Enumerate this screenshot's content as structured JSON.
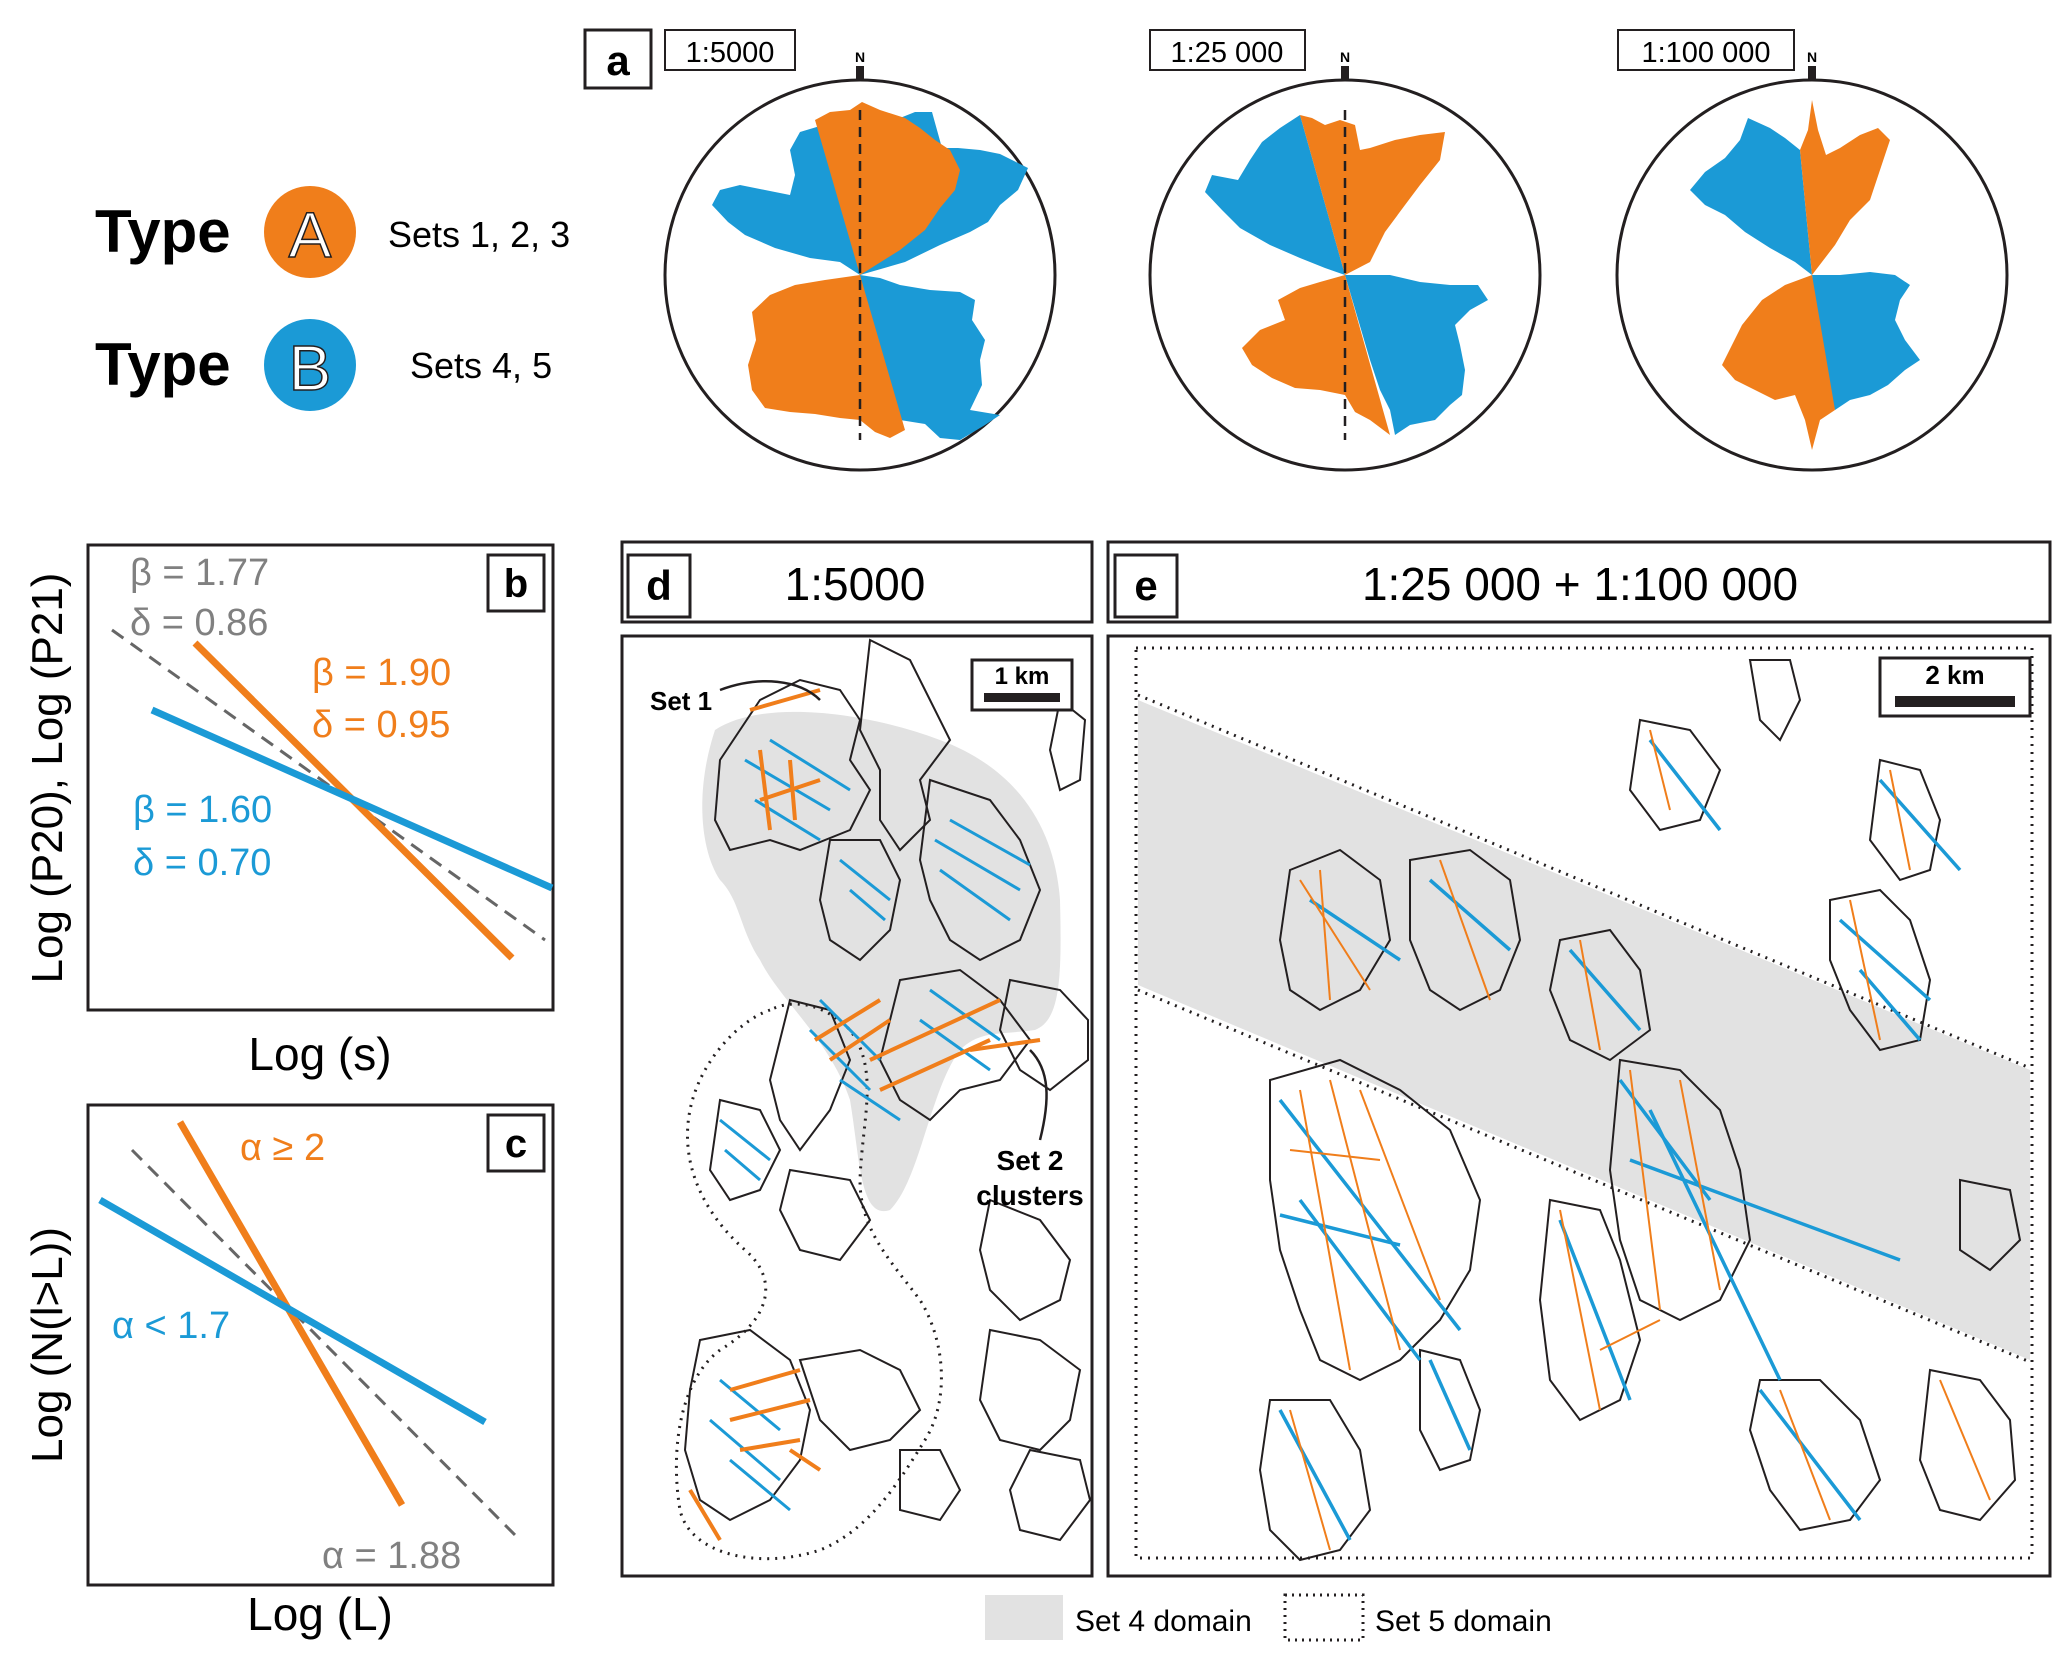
{
  "colors": {
    "orange": "#f07e1b",
    "blue": "#1b9ad6",
    "grey": "#808080",
    "shade": "#e2e2e2",
    "ink": "#231f20"
  },
  "panel_a": {
    "letter": "a",
    "legend": {
      "type_word": "Type",
      "type_a_letter": "A",
      "type_a_sets": "Sets 1, 2, 3",
      "type_b_letter": "B",
      "type_b_sets": "Sets 4, 5"
    },
    "north_label": "N",
    "roses": [
      {
        "scale": "1:5000"
      },
      {
        "scale": "1:25 000"
      },
      {
        "scale": "1:100 000"
      }
    ]
  },
  "panel_b": {
    "letter": "b",
    "ylabel": "Log (P20), Log (P21)",
    "xlabel": "Log (s)",
    "grey_beta": "β = 1.77",
    "grey_delta": "δ = 0.86",
    "orange_beta": "β = 1.90",
    "orange_delta": "δ = 0.95",
    "blue_beta": "β = 1.60",
    "blue_delta": "δ = 0.70"
  },
  "panel_c": {
    "letter": "c",
    "ylabel": "Log (N(l>L))",
    "xlabel": "Log (L)",
    "orange_alpha": "α ≥ 2",
    "blue_alpha": "α < 1.7",
    "grey_alpha": "α = 1.88"
  },
  "panel_d": {
    "letter": "d",
    "title": "1:5000",
    "scale_bar": "1 km",
    "set1_label": "Set 1",
    "set2_label_line1": "Set 2",
    "set2_label_line2": "clusters"
  },
  "panel_e": {
    "letter": "e",
    "title": "1:25 000 + 1:100 000",
    "scale_bar": "2 km"
  },
  "legend_bottom": {
    "set4": "Set 4 domain",
    "set5": "Set 5 domain"
  }
}
